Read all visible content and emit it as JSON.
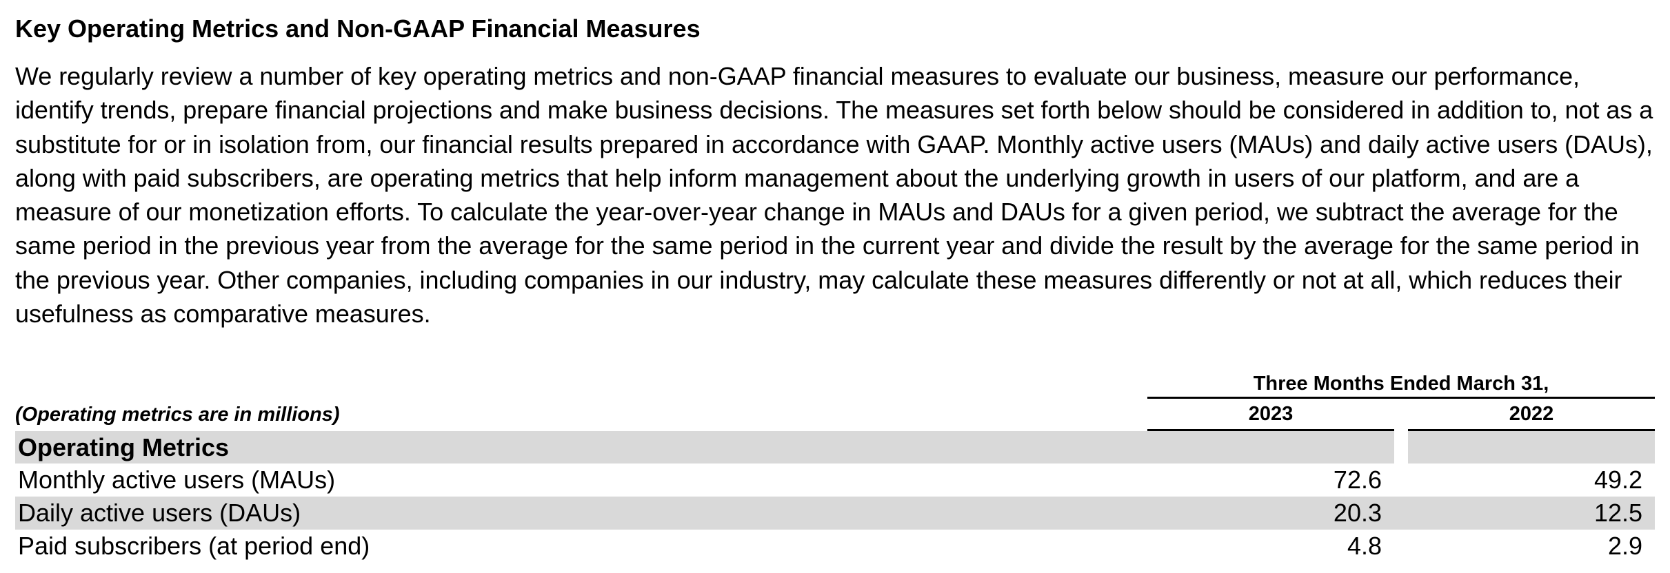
{
  "section": {
    "heading": "Key Operating Metrics and Non-GAAP Financial Measures",
    "intro": "We regularly review a number of key operating metrics and non-GAAP financial measures to evaluate our business, measure our performance, identify trends, prepare financial projections and make business decisions. The measures set forth below should be considered in addition to, not as a substitute for or in isolation from, our financial results prepared in accordance with GAAP. Monthly active users (MAUs) and daily active users (DAUs), along with paid subscribers, are operating metrics that help inform management about the underlying growth in users of our platform, and are a measure of our monetization efforts. To calculate the year-over-year change in MAUs and DAUs for a given period, we subtract the average for the same period in the previous year from the average for the same period in the current year and divide the result by the average for the same period in the previous year. Other companies, including companies in our industry, may calculate these measures differently or not at all, which reduces their usefulness as comparative measures."
  },
  "table": {
    "period_header": "Three Months Ended March 31,",
    "unit_note": "(Operating metrics are in millions)",
    "years": [
      "2023",
      "2022"
    ],
    "group_label": "Operating Metrics",
    "rows": [
      {
        "label": "Monthly active users (MAUs)",
        "values": [
          "72.6",
          "49.2"
        ]
      },
      {
        "label": "Daily active users (DAUs)",
        "values": [
          "20.3",
          "12.5"
        ]
      },
      {
        "label": "Paid subscribers (at period end)",
        "values": [
          "4.8",
          "2.9"
        ]
      }
    ],
    "shade_color": "#d9d9d9"
  }
}
